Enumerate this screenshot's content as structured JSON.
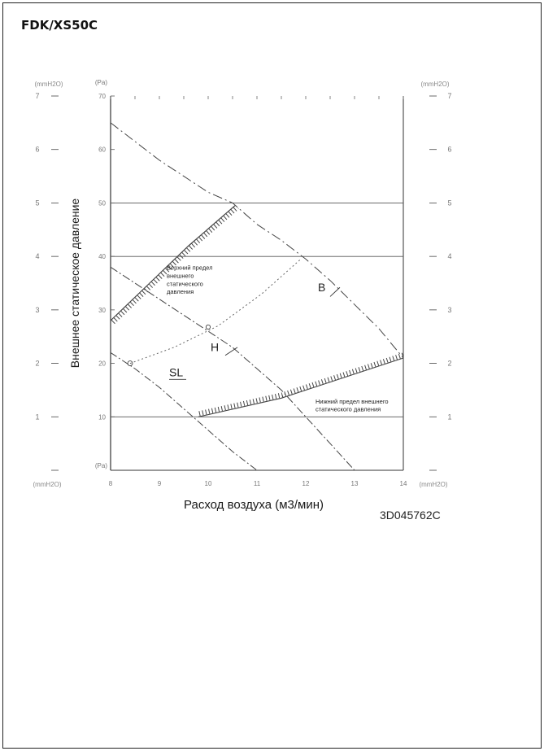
{
  "page": {
    "model_title": "FDK/XS50C",
    "document_code": "3D045762C"
  },
  "chart_data": {
    "type": "line",
    "xlabel": "Расход воздуха (м3/мин)",
    "ylabel": "Внешнее статическое давление",
    "xlim": [
      8,
      14
    ],
    "ylim": [
      0,
      70
    ],
    "x_ticks": [
      "8",
      "9",
      "10",
      "11",
      "12",
      "13",
      "14"
    ],
    "y_ticks_pa": [
      "10",
      "20",
      "30",
      "40",
      "50",
      "60",
      "70"
    ],
    "y_unit_pa": "(Pa)",
    "y_ticks_mmh2o": [
      "1",
      "2",
      "3",
      "4",
      "5",
      "6",
      "7"
    ],
    "y_unit_mmh2o": "(mmH2O)",
    "grid_lines_y": [
      10,
      40,
      50
    ],
    "series": [
      {
        "name": "B",
        "x": [
          8.0,
          8.5,
          9.0,
          9.5,
          10.0,
          10.5,
          11.0,
          11.5,
          12.0,
          12.5,
          13.0,
          13.5,
          14.0
        ],
        "y": [
          65,
          61.5,
          58,
          55,
          52,
          50,
          46,
          43,
          39.5,
          35.5,
          31,
          26.5,
          21
        ]
      },
      {
        "name": "H",
        "x": [
          8.0,
          8.5,
          9.0,
          9.5,
          10.0,
          10.5,
          11.0,
          11.5,
          12.0,
          12.5,
          13.0
        ],
        "y": [
          38,
          35,
          32,
          29,
          26,
          23,
          19,
          15,
          10,
          5,
          0
        ]
      },
      {
        "name": "SL",
        "x": [
          8.0,
          8.5,
          9.0,
          9.5,
          10.0,
          10.5,
          11.0
        ],
        "y": [
          22,
          19,
          15.5,
          11.5,
          7.5,
          3.5,
          0
        ]
      }
    ],
    "limits": [
      {
        "name": "Верхний предел внешнего статического давления",
        "x": [
          8.0,
          8.8,
          9.6,
          10.55
        ],
        "y": [
          28,
          35,
          42,
          49.5
        ],
        "dotted_extension": {
          "x": [
            8.4,
            9.3,
            10.2,
            11.1,
            11.9
          ],
          "y": [
            20,
            23,
            27,
            33,
            39.5
          ]
        }
      },
      {
        "name": "Нижний предел внешнего статического давления",
        "x": [
          9.8,
          11.5,
          14.0
        ],
        "y": [
          10,
          13.5,
          21
        ]
      }
    ],
    "annotations": [
      {
        "text": "Верхний предел",
        "x": 9.15,
        "y": 37.5
      },
      {
        "text": "внешнего",
        "x": 9.15,
        "y": 36
      },
      {
        "text": "статического",
        "x": 9.15,
        "y": 34.5
      },
      {
        "text": "давления",
        "x": 9.15,
        "y": 33
      },
      {
        "text": "Нижний предел внешнего",
        "x": 12.2,
        "y": 12.5
      },
      {
        "text": "статического давления",
        "x": 12.2,
        "y": 11
      }
    ]
  }
}
